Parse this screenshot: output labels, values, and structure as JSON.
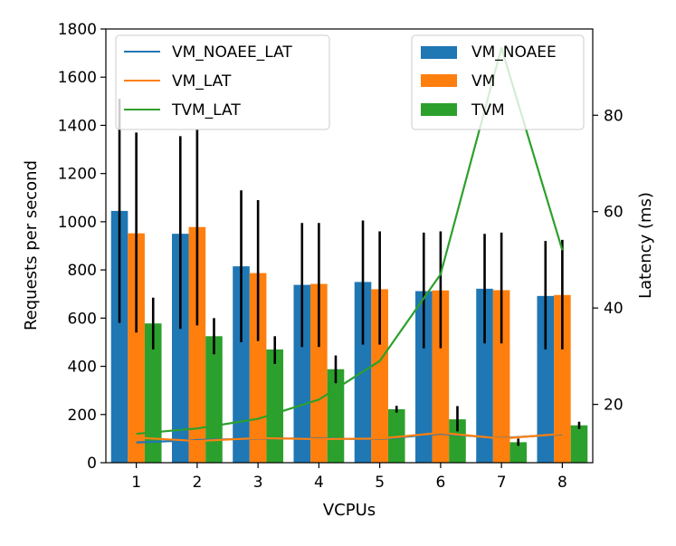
{
  "chart_data": {
    "type": "bar",
    "title": "",
    "xlabel": "VCPUs",
    "ylabel": "Requests per second",
    "y2label": "Latency (ms)",
    "categories": [
      "1",
      "2",
      "3",
      "4",
      "5",
      "6",
      "7",
      "8"
    ],
    "ylim": [
      0,
      1800
    ],
    "yticks": [
      0,
      200,
      400,
      600,
      800,
      1000,
      1200,
      1400,
      1600,
      1800
    ],
    "y2lim": [
      7.9,
      97.9
    ],
    "y2ticks": [
      20,
      40,
      60,
      80
    ],
    "grid": false,
    "bar_series": [
      {
        "name": "VM_NOAEE",
        "color": "#1f77b4",
        "values": [
          1045,
          950,
          815,
          738,
          750,
          712,
          722,
          692
        ],
        "err_low": [
          580,
          555,
          500,
          480,
          490,
          475,
          495,
          470
        ],
        "err_high": [
          1510,
          1355,
          1130,
          995,
          1005,
          955,
          950,
          920
        ]
      },
      {
        "name": "VM",
        "color": "#ff7f0e",
        "values": [
          952,
          978,
          787,
          742,
          720,
          715,
          716,
          696
        ],
        "err_low": [
          540,
          570,
          505,
          480,
          490,
          475,
          495,
          470
        ],
        "err_high": [
          1370,
          1385,
          1090,
          995,
          960,
          960,
          955,
          925
        ]
      },
      {
        "name": "TVM",
        "color": "#2ca02c",
        "values": [
          578,
          525,
          470,
          388,
          222,
          180,
          85,
          155
        ],
        "err_low": [
          470,
          450,
          410,
          330,
          208,
          130,
          70,
          140
        ],
        "err_high": [
          685,
          600,
          525,
          445,
          236,
          235,
          100,
          170
        ]
      }
    ],
    "line_series": [
      {
        "name": "VM_NOAEE_LAT",
        "color": "#1f77b4",
        "values": [
          12.1,
          12.6,
          12.9,
          12.9,
          12.8,
          13.9,
          13.0,
          13.8
        ]
      },
      {
        "name": "VM_LAT",
        "color": "#ff7f0e",
        "values": [
          13.1,
          12.4,
          13.0,
          12.8,
          12.9,
          14.1,
          12.9,
          13.9
        ]
      },
      {
        "name": "TVM_LAT",
        "color": "#2ca02c",
        "values": [
          13.9,
          15.0,
          17.0,
          21.0,
          29.0,
          47.0,
          94.0,
          52.0
        ]
      }
    ],
    "legends": {
      "lines_location": "upper-left",
      "bars_location": "upper-right"
    }
  }
}
